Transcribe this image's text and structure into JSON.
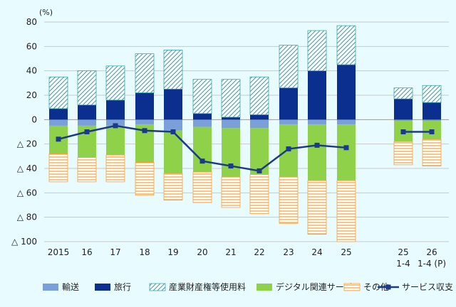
{
  "chart_data": {
    "type": "bar",
    "stacked": true,
    "unit_label": "(%)",
    "categories": [
      "2015",
      "16",
      "17",
      "18",
      "19",
      "20",
      "21",
      "22",
      "23",
      "24",
      "25",
      "25 1-4",
      "26 1-4 (P)"
    ],
    "category_display": [
      [
        "2015"
      ],
      [
        "16"
      ],
      [
        "17"
      ],
      [
        "18"
      ],
      [
        "19"
      ],
      [
        "20"
      ],
      [
        "21"
      ],
      [
        "22"
      ],
      [
        "23"
      ],
      [
        "24"
      ],
      [
        "25"
      ],
      [
        "25",
        "1-4"
      ],
      [
        "26",
        "1-4 (P)"
      ]
    ],
    "ylim": [
      -100,
      80
    ],
    "y_ticks": [
      80,
      60,
      40,
      20,
      0,
      -20,
      -40,
      -60,
      -80,
      -100
    ],
    "y_tick_labels": [
      "80",
      "60",
      "40",
      "20",
      "0",
      "△ 20",
      "△ 40",
      "△ 60",
      "△ 80",
      "△ 100"
    ],
    "grid": true,
    "legend_position": "bottom",
    "series": [
      {
        "name": "輸送",
        "kind": "bar",
        "color": "#7b9fd8",
        "values": [
          -5,
          -5,
          -5,
          -4,
          -9,
          -6,
          -7,
          -7,
          -4,
          -4,
          -4,
          -1,
          -1
        ]
      },
      {
        "name": "旅行",
        "kind": "bar",
        "color": "#0b2f8f",
        "values": [
          9,
          12,
          16,
          22,
          25,
          5,
          2,
          4,
          26,
          40,
          45,
          17,
          14
        ]
      },
      {
        "name": "産業財産権等使用料",
        "kind": "bar",
        "color": "#3aa6ad",
        "pattern": "diagonal",
        "values": [
          26,
          28,
          28,
          32,
          32,
          28,
          31,
          31,
          35,
          33,
          32,
          9,
          14
        ]
      },
      {
        "name": "デジタル関連サービス",
        "kind": "bar",
        "color": "#8fd24a",
        "values": [
          -23,
          -26,
          -24,
          -31,
          -35,
          -37,
          -40,
          -38,
          -43,
          -46,
          -46,
          -17,
          -15
        ]
      },
      {
        "name": "その他",
        "kind": "bar",
        "color": "#f5a03a",
        "pattern": "horizontal",
        "values": [
          -23,
          -20,
          -22,
          -27,
          -22,
          -25,
          -25,
          -32,
          -38,
          -44,
          -50,
          -19,
          -22
        ]
      },
      {
        "name": "サービス収支",
        "kind": "line",
        "color": "#1b3a8a",
        "marker": "square",
        "values": [
          -16,
          -10,
          -5,
          -9,
          -10,
          -34,
          -38,
          -42,
          -24,
          -21,
          -23,
          -10,
          -10
        ]
      }
    ]
  }
}
